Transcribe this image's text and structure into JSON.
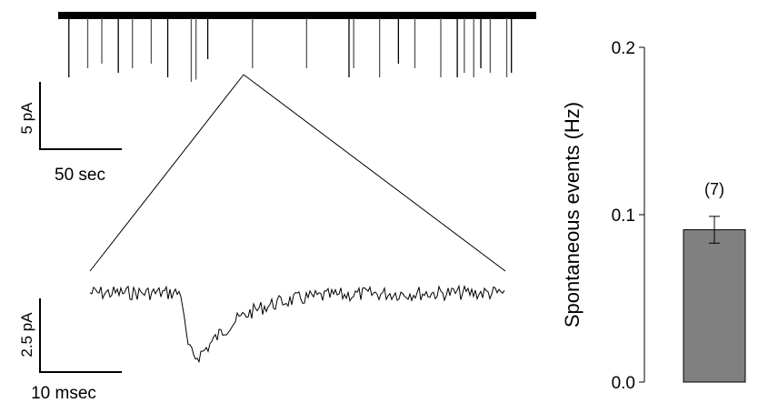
{
  "scale_bars": {
    "raw_trace": {
      "amplitude": "5 pA",
      "time": "50 sec"
    },
    "expanded_trace": {
      "amplitude": "2.5 pA",
      "time": "10 msec"
    }
  },
  "trace": {
    "event_times": [
      3,
      11,
      17,
      24,
      30,
      38,
      45,
      55,
      57,
      62,
      81,
      104,
      122,
      124,
      135,
      143,
      150,
      161,
      168,
      171,
      175,
      178,
      182,
      189,
      191
    ],
    "event_amplitudes": [
      0.9,
      0.7,
      0.6,
      0.8,
      0.7,
      0.6,
      0.9,
      1.0,
      0.95,
      0.5,
      0.7,
      0.7,
      0.9,
      0.7,
      0.9,
      0.6,
      0.7,
      0.9,
      0.9,
      0.8,
      0.9,
      0.7,
      0.8,
      0.9,
      0.8
    ]
  },
  "colors": {
    "bar_fill": "#808080",
    "ink": "#000000"
  },
  "chart_data": {
    "type": "bar",
    "categories": [
      ""
    ],
    "values": [
      0.091
    ],
    "error": [
      0.008
    ],
    "annotations": [
      "(7)"
    ],
    "ylabel": "Spontaneous events (Hz)",
    "ylim": [
      0,
      0.2
    ],
    "yticks": [
      "0.0",
      "0.1",
      "0.2"
    ],
    "grid": false,
    "legend": "none"
  }
}
